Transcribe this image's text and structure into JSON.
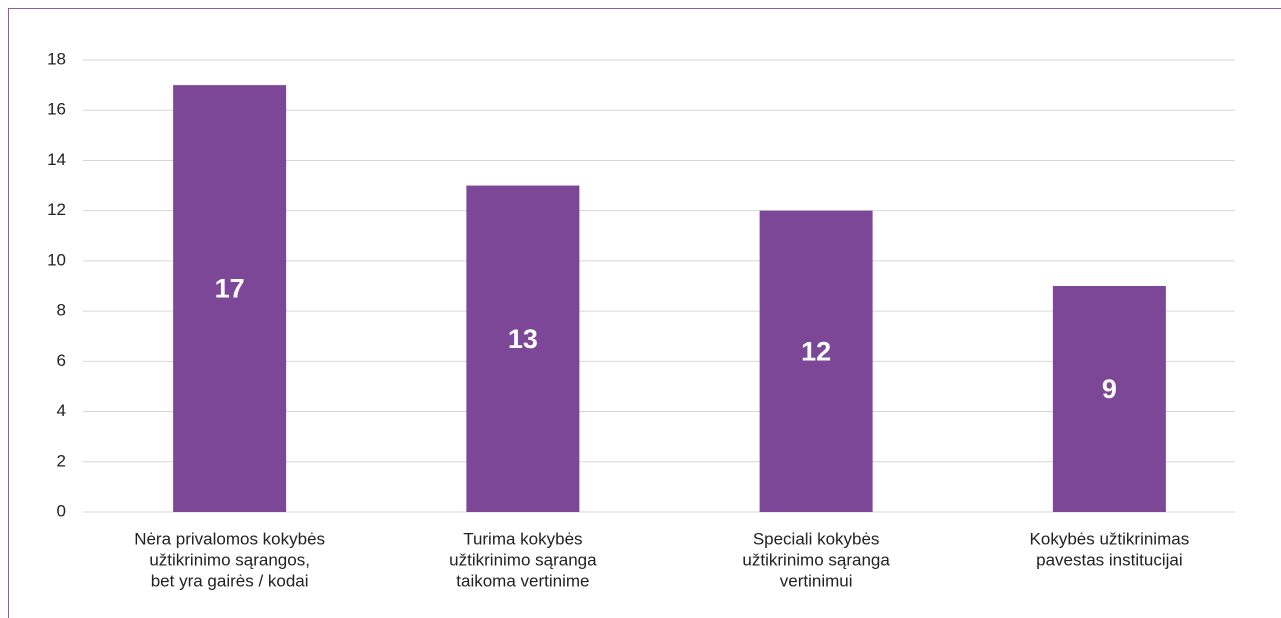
{
  "chart_data": {
    "type": "bar",
    "categories": [
      [
        "Nėra privalomos kokybės",
        "užtikrinimo sąrangos,",
        "bet yra gairės / kodai"
      ],
      [
        "Turima kokybės",
        "užtikrinimo sąranga",
        "taikoma vertinime"
      ],
      [
        "Speciali kokybės",
        "užtikrinimo sąranga",
        "vertinimui"
      ],
      [
        "Kokybės užtikrinimas",
        "pavestas institucijai"
      ]
    ],
    "values": [
      17,
      13,
      12,
      9
    ],
    "color": "#7d4798",
    "ylim": [
      0,
      18
    ],
    "yticks": [
      0,
      2,
      4,
      6,
      8,
      10,
      12,
      14,
      16,
      18
    ],
    "grid": true
  }
}
